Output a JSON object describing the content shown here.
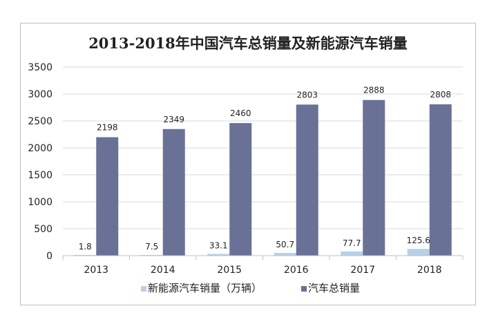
{
  "chart_data": {
    "type": "bar",
    "title": "2013-2018年中国汽车总销量及新能源汽车销量",
    "categories": [
      "2013",
      "2014",
      "2015",
      "2016",
      "2017",
      "2018"
    ],
    "series": [
      {
        "name": "新能源汽车销量（万辆）",
        "values": [
          1.8,
          7.5,
          33.1,
          50.7,
          77.7,
          125.6
        ],
        "color": "#b7d0e8"
      },
      {
        "name": "汽车总销量",
        "values": [
          2198,
          2349,
          2460,
          2803,
          2888,
          2808
        ],
        "color": "#6a7196"
      }
    ],
    "ylim": [
      0,
      3500
    ],
    "yticks": [
      0,
      500,
      1000,
      1500,
      2000,
      2500,
      3000,
      3500
    ],
    "grid": true,
    "legend_position": "bottom",
    "axis_color": "#bfbfbf"
  }
}
